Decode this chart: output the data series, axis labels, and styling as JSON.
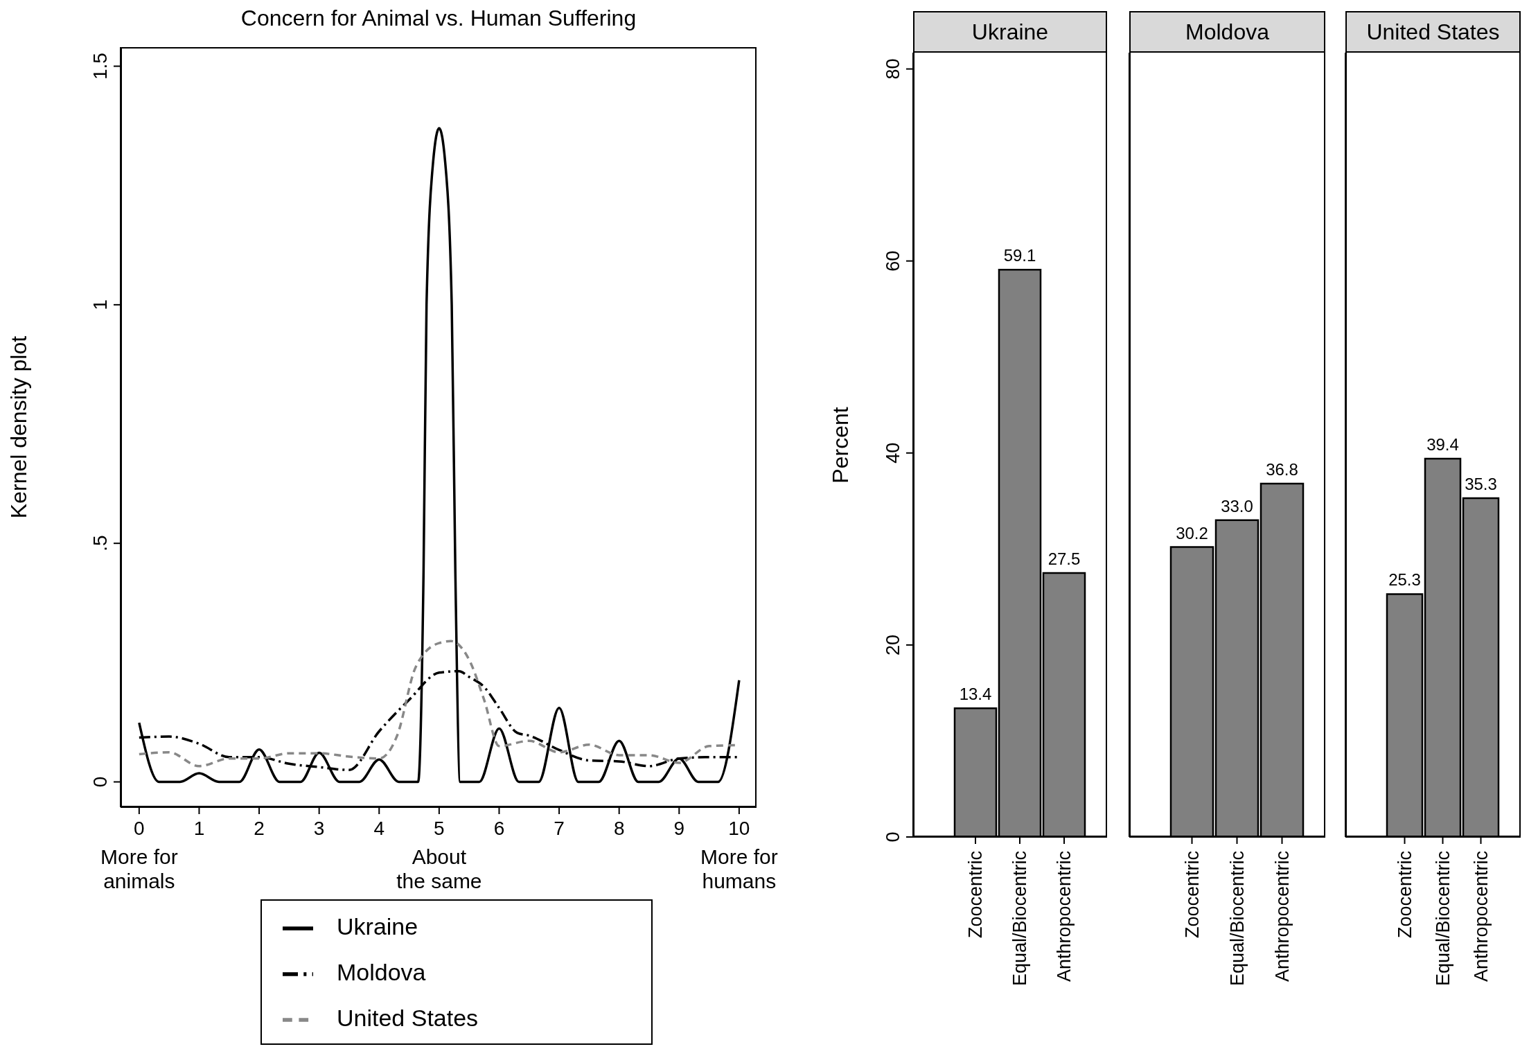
{
  "chart_data": [
    {
      "type": "line",
      "title": "Concern for Animal vs. Human Suffering",
      "ylabel": "Kernel density plot",
      "xlim": [
        -0.31,
        10.29
      ],
      "ylim": [
        -0.053,
        1.54
      ],
      "xticks": [
        0,
        1,
        2,
        3,
        4,
        5,
        6,
        7,
        8,
        9,
        10
      ],
      "annotations": [
        "More for\nanimals",
        "About\nthe same",
        "More for\nhumans"
      ],
      "yticks": [
        0,
        {
          "value": 0.5,
          "label": ".5"
        },
        1,
        1.5
      ],
      "grid": false,
      "legend": "bottom",
      "marker": "none",
      "series": [
        {
          "name": "Ukraine",
          "color": "#000000",
          "line_style": "solid",
          "x": [
            0,
            0.33,
            0.68,
            1,
            1.33,
            1.67,
            2,
            2.34,
            2.69,
            3,
            3.34,
            3.67,
            4,
            4.33,
            4.65,
            4.74,
            4.79,
            4.9,
            5,
            5.1,
            5.21,
            5.27,
            5.35,
            5.67,
            6,
            6.33,
            6.66,
            7,
            7.32,
            7.66,
            8,
            8.32,
            8.66,
            9,
            9.32,
            9.65,
            10
          ],
          "values": [
            0.124,
            0,
            0,
            0.018,
            0,
            0,
            0.068,
            0,
            0,
            0.061,
            0,
            0,
            0.047,
            0,
            0,
            0.44,
            1.0,
            1.3,
            1.37,
            1.3,
            1.0,
            0.44,
            0,
            0,
            0.112,
            0,
            0,
            0.155,
            0,
            0,
            0.086,
            0,
            0,
            0.049,
            0,
            0,
            0.213
          ]
        },
        {
          "name": "Moldova",
          "color": "#000000",
          "line_style": "dashdot",
          "x": [
            0,
            0.5,
            1,
            1.5,
            2,
            2.5,
            3,
            3.5,
            4,
            4.5,
            5,
            5.33,
            5.5,
            5.75,
            6,
            6.3,
            6.5,
            7,
            7.5,
            8,
            8.5,
            9,
            9.5,
            10
          ],
          "values": [
            0.093,
            0.095,
            0.08,
            0.052,
            0.052,
            0.038,
            0.031,
            0.025,
            0.106,
            0.172,
            0.229,
            0.232,
            0.22,
            0.199,
            0.155,
            0.103,
            0.097,
            0.067,
            0.045,
            0.043,
            0.033,
            0.049,
            0.052,
            0.052
          ]
        },
        {
          "name": "United States",
          "color": "#888888",
          "line_style": "dashed",
          "x": [
            0,
            0.5,
            1,
            1.5,
            2,
            2.5,
            3,
            3.5,
            4,
            4.3,
            4.6,
            4.75,
            5,
            5.2,
            5.5,
            5.75,
            6,
            6.5,
            7,
            7.5,
            8,
            8.5,
            9,
            9.5,
            10
          ],
          "values": [
            0.058,
            0.062,
            0.033,
            0.049,
            0.049,
            0.06,
            0.06,
            0.053,
            0.049,
            0.097,
            0.238,
            0.269,
            0.291,
            0.295,
            0.256,
            0.172,
            0.075,
            0.086,
            0.062,
            0.078,
            0.056,
            0.056,
            0.04,
            0.075,
            0.077
          ]
        }
      ]
    },
    {
      "type": "bar",
      "title": "Ukraine",
      "ylabel": "Percent",
      "categories": [
        "Zoocentric",
        "Equal/Biocentric",
        "Anthropocentric"
      ],
      "values": [
        13.4,
        59.1,
        27.5
      ],
      "value_labels": [
        "13.4",
        "59.1",
        "27.5"
      ],
      "color": "#808080",
      "ylim": [
        0,
        81.7
      ],
      "yticks": [
        0,
        20,
        40,
        60,
        80
      ],
      "grid": false
    },
    {
      "type": "bar",
      "title": "Moldova",
      "categories": [
        "Zoocentric",
        "Equal/Biocentric",
        "Anthropocentric"
      ],
      "values": [
        30.2,
        33.0,
        36.8
      ],
      "value_labels": [
        "30.2",
        "33.0",
        "36.8"
      ],
      "color": "#808080",
      "ylim": [
        0,
        81.7
      ],
      "yticks": [
        0,
        20,
        40,
        60,
        80
      ],
      "grid": false,
      "tick_labels": "x"
    },
    {
      "type": "bar",
      "title": "United States",
      "categories": [
        "Zoocentric",
        "Equal/Biocentric",
        "Anthropocentric"
      ],
      "values": [
        25.3,
        39.4,
        35.3
      ],
      "value_labels": [
        "25.3",
        "39.4",
        "35.3"
      ],
      "color": "#808080",
      "ylim": [
        0,
        81.7
      ],
      "yticks": [
        0,
        20,
        40,
        60,
        80
      ],
      "grid": false,
      "tick_labels": "x"
    }
  ]
}
